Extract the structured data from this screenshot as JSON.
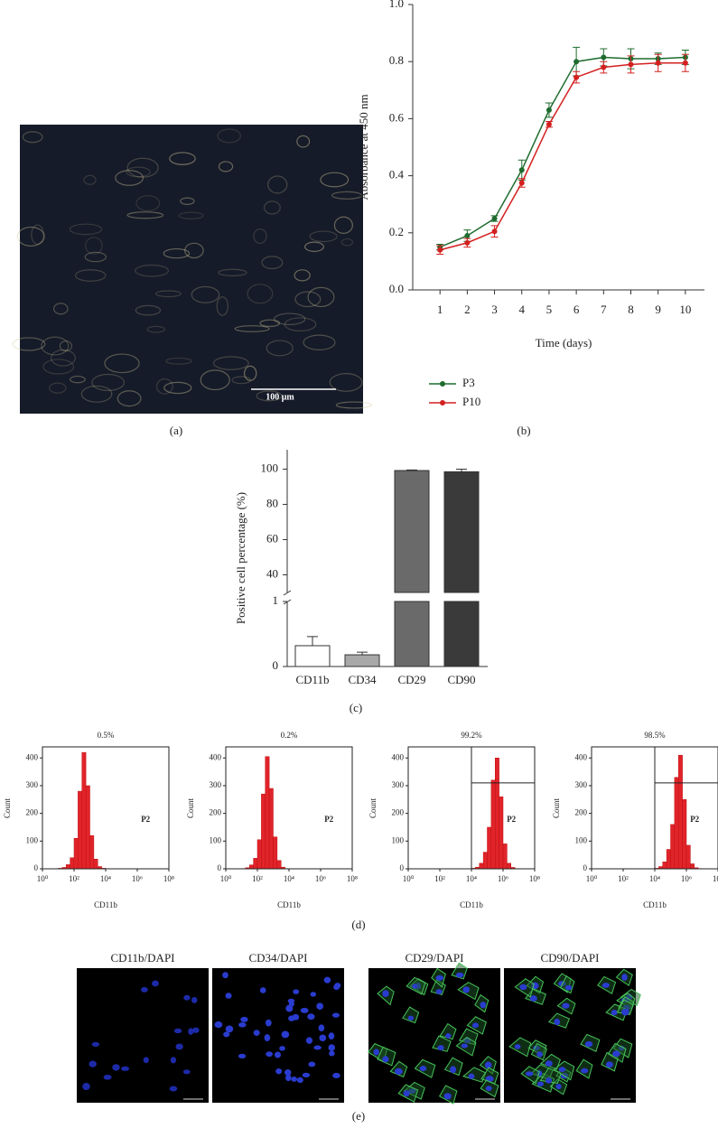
{
  "panel_labels": [
    "(a)",
    "(b)",
    "(c)",
    "(d)",
    "(e)"
  ],
  "micrograph": {
    "scale_bar": "100 μm"
  },
  "immunofluorescence": {
    "titles": [
      "CD11b/DAPI",
      "CD34/DAPI",
      "CD29/DAPI",
      "CD90/DAPI"
    ]
  },
  "chart_data": [
    {
      "type": "line",
      "xlabel": "Time (days)",
      "ylabel": "Absorbance at 450 nm",
      "x": [
        1,
        2,
        3,
        4,
        5,
        6,
        7,
        8,
        9,
        10
      ],
      "xlim": [
        0,
        10.7
      ],
      "xticks": [
        1,
        2,
        3,
        4,
        5,
        6,
        7,
        8,
        9,
        10
      ],
      "ylim": [
        0,
        1
      ],
      "yticks": [
        {
          "value": 0,
          "label": "0.0"
        },
        0.2,
        0.4,
        0.6,
        0.8,
        {
          "value": 1,
          "label": "1.0"
        }
      ],
      "legend": "below",
      "series": [
        {
          "name": "P3",
          "color": "#1e6b2e",
          "values": [
            0.15,
            0.19,
            0.25,
            0.42,
            0.63,
            0.8,
            0.815,
            0.81,
            0.81,
            0.815
          ],
          "errors": [
            0.01,
            0.02,
            0.01,
            0.035,
            0.025,
            0.05,
            0.03,
            0.035,
            0.02,
            0.025
          ]
        },
        {
          "name": "P10",
          "color": "#d42020",
          "values": [
            0.14,
            0.165,
            0.205,
            0.375,
            0.58,
            0.745,
            0.78,
            0.79,
            0.795,
            0.795
          ],
          "errors": [
            0.015,
            0.015,
            0.02,
            0.015,
            0.01,
            0.02,
            0.02,
            0.03,
            0.03,
            0.03
          ]
        }
      ]
    },
    {
      "type": "broken-bar",
      "ylabel": "Positive cell percentage (%)",
      "categories": [
        "CD11b",
        "CD34",
        "CD29",
        "CD90"
      ],
      "values": [
        0.32,
        0.18,
        99.2,
        98.5
      ],
      "errors": [
        0.14,
        0.04,
        0.3,
        1.5
      ],
      "colors": [
        "#ffffff",
        "#a8a8a8",
        "#6a6a6a",
        "#3a3a3a"
      ],
      "segments": [
        {
          "ylim": [
            0,
            1
          ],
          "yticks": [
            0,
            1
          ]
        },
        {
          "ylim": [
            30,
            111
          ],
          "yticks": [
            40,
            60,
            80,
            100
          ]
        }
      ]
    },
    {
      "type": "histogram",
      "title": "0.5%",
      "xlabel": "CD11b",
      "ylabel": "Count",
      "gate_label": "P2",
      "color": "#e0242a",
      "log_x": true,
      "xlim": [
        1,
        100000000
      ],
      "xticks": [
        {
          "value": 1,
          "label": "10⁰"
        },
        {
          "value": 100,
          "label": "10²"
        },
        {
          "value": 10000,
          "label": "10⁴"
        },
        {
          "value": 1000000,
          "label": "10⁶"
        },
        {
          "value": 100000000,
          "label": "10⁸"
        }
      ],
      "ylim": [
        0,
        440
      ],
      "yticks": [
        0,
        100,
        200,
        300,
        400
      ],
      "bins": [
        10,
        17.8,
        31.6,
        56.2,
        100,
        178,
        316,
        562,
        1000,
        1780,
        3160,
        5620,
        10000
      ],
      "counts": [
        2,
        5,
        15,
        40,
        110,
        280,
        420,
        300,
        120,
        35,
        8,
        2
      ]
    },
    {
      "type": "histogram",
      "title": "0.2%",
      "xlabel": "CD11b",
      "ylabel": "Count",
      "gate_label": "P2",
      "color": "#e0242a",
      "log_x": true,
      "xlim": [
        1,
        100000000
      ],
      "xticks": [
        {
          "value": 1,
          "label": "10⁰"
        },
        {
          "value": 100,
          "label": "10²"
        },
        {
          "value": 10000,
          "label": "10⁴"
        },
        {
          "value": 1000000,
          "label": "10⁶"
        },
        {
          "value": 100000000,
          "label": "10⁸"
        }
      ],
      "ylim": [
        0,
        440
      ],
      "yticks": [
        0,
        100,
        200,
        300,
        400
      ],
      "bins": [
        10,
        17.8,
        31.6,
        56.2,
        100,
        178,
        316,
        562,
        1000,
        1780,
        3160,
        5620,
        10000
      ],
      "counts": [
        1,
        4,
        14,
        38,
        105,
        270,
        405,
        290,
        115,
        30,
        6,
        1
      ]
    },
    {
      "type": "histogram",
      "title": "99.2%",
      "xlabel": "CD11b",
      "ylabel": "Count",
      "gate_label": "P2",
      "color": "#e0242a",
      "log_x": true,
      "xlim": [
        1,
        100000000
      ],
      "xticks": [
        {
          "value": 1,
          "label": "10⁰"
        },
        {
          "value": 100,
          "label": "10²"
        },
        {
          "value": 10000,
          "label": "10⁴"
        },
        {
          "value": 1000000,
          "label": "10⁶"
        },
        {
          "value": 100000000,
          "label": "10⁸"
        }
      ],
      "ylim": [
        0,
        440
      ],
      "yticks": [
        0,
        100,
        200,
        300,
        400
      ],
      "bins": [
        10000,
        17800,
        31600,
        56200,
        100000,
        178000,
        316000,
        562000,
        1000000,
        1780000,
        3160000,
        5620000,
        10000000
      ],
      "counts": [
        2,
        6,
        20,
        60,
        150,
        320,
        400,
        260,
        90,
        20,
        5,
        1
      ],
      "gate_x": 10000,
      "gate_y": 310
    },
    {
      "type": "histogram",
      "title": "98.5%",
      "xlabel": "CD11b",
      "ylabel": "Count",
      "gate_label": "P2",
      "color": "#e0242a",
      "log_x": true,
      "xlim": [
        1,
        100000000
      ],
      "xticks": [
        {
          "value": 1,
          "label": "10⁰"
        },
        {
          "value": 100,
          "label": "10²"
        },
        {
          "value": 10000,
          "label": "10⁴"
        },
        {
          "value": 1000000,
          "label": "10⁶"
        },
        {
          "value": 100000000,
          "label": "10⁸"
        }
      ],
      "ylim": [
        0,
        440
      ],
      "yticks": [
        0,
        100,
        200,
        300,
        400
      ],
      "bins": [
        10000,
        17800,
        31600,
        56200,
        100000,
        178000,
        316000,
        562000,
        1000000,
        1780000,
        3160000,
        5620000,
        10000000
      ],
      "counts": [
        2,
        8,
        25,
        70,
        160,
        330,
        410,
        250,
        85,
        18,
        4,
        1
      ],
      "gate_x": 10000,
      "gate_y": 310
    }
  ]
}
